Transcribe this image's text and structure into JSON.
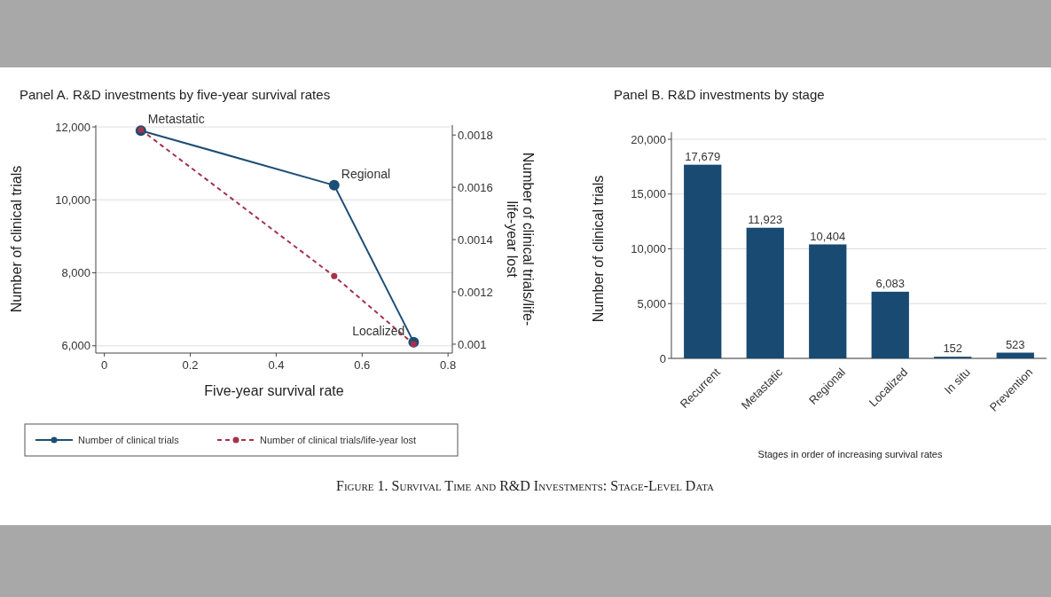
{
  "chart_data": [
    {
      "type": "line",
      "title": "Panel A. R&D investments by five-year survival rates",
      "xlabel": "Five-year survival rate",
      "ylabel": "Number of clinical trials",
      "y2label": "Number of clinical trials/life-life-year lost",
      "x": [
        0.085,
        0.535,
        0.72
      ],
      "series": [
        {
          "name": "Number of clinical trials",
          "color": "#1d4e75",
          "values": [
            11900,
            10400,
            6100
          ],
          "line_style": "solid"
        },
        {
          "name": "Number of clinical trials/life-year lost",
          "color": "#a3324f",
          "values": [
            0.00182,
            0.00126,
            0.001
          ],
          "axis": "y2",
          "line_style": "dashed"
        }
      ],
      "xlim": [
        -0.02,
        0.81
      ],
      "xticks": [
        0,
        0.2,
        0.4,
        0.6,
        0.8
      ],
      "ylim": [
        5800,
        12050
      ],
      "yticks": [
        {
          "value": 6000,
          "label": "6,000"
        },
        {
          "value": 8000,
          "label": "8,000"
        },
        {
          "value": 10000,
          "label": "10,000"
        },
        {
          "value": 12000,
          "label": "12,000"
        }
      ],
      "y2lim": [
        0.000966,
        0.001838
      ],
      "y2ticks": [
        0.001,
        0.0012,
        0.0014,
        0.0016,
        0.0018
      ],
      "grid": "y",
      "legend": "bottom",
      "marker": "circle",
      "annotations": [
        {
          "text": "Metastatic",
          "x": 0.085,
          "y": 11900
        },
        {
          "text": "Regional",
          "x": 0.535,
          "y": 10400
        },
        {
          "text": "Localized",
          "x": 0.72,
          "y": 6100
        },
        "Figure 1. Survival Time and R&D Investments: Stage-Level Data"
      ]
    },
    {
      "type": "bar",
      "title": "Panel B. R&D investments by stage",
      "xlabel": "Stages in order of increasing survival rates",
      "ylabel": "Number of clinical trials",
      "categories": [
        "Recurrent",
        "Metastatic",
        "Regional",
        "Localized",
        "In situ",
        "Prevention"
      ],
      "values": [
        17679,
        11923,
        10404,
        6083,
        152,
        523
      ],
      "color": "#194a72",
      "ylim": [
        0,
        20000
      ],
      "yticks": [
        0,
        {
          "value": 5000,
          "label": "5,000"
        },
        {
          "value": 10000,
          "label": "10,000"
        },
        {
          "value": 15000,
          "label": "15,000"
        },
        {
          "value": 20000,
          "label": "20,000"
        }
      ],
      "grid": "y",
      "value_labels": [
        "17,679",
        "11,923",
        "10,404",
        "6,083",
        "152",
        "523"
      ]
    }
  ]
}
